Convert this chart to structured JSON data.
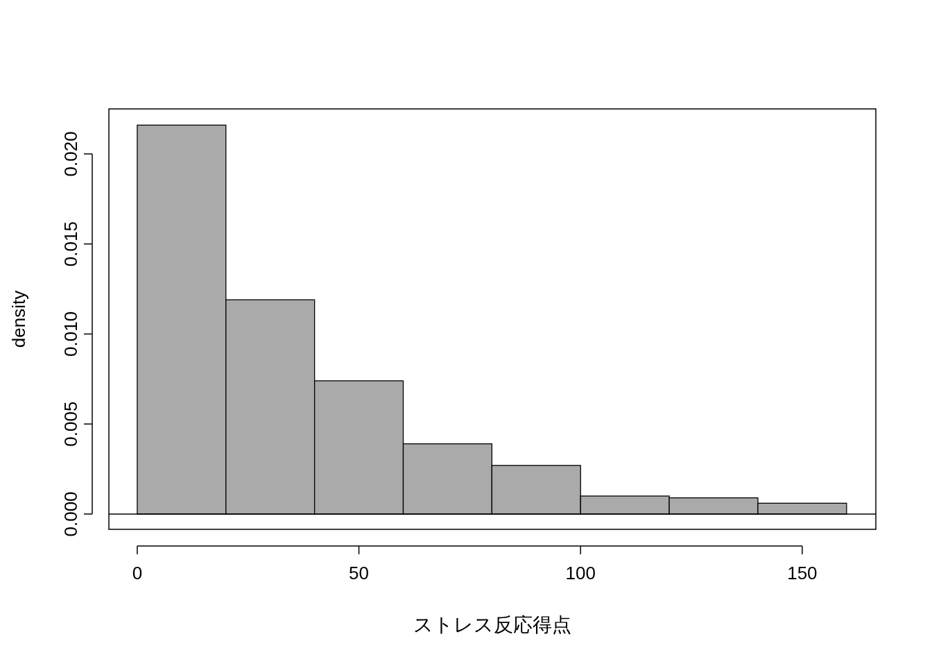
{
  "chart_data": {
    "type": "histogram",
    "xlabel": "ストレス反応得点",
    "ylabel": "density",
    "bins": [
      0,
      20,
      40,
      60,
      80,
      100,
      120,
      140,
      160
    ],
    "values": [
      0.0216,
      0.0119,
      0.0074,
      0.0039,
      0.0027,
      0.001,
      0.0009,
      0.0006
    ],
    "color": "#aaaaaa",
    "xlim": [
      -6.4,
      166.6
    ],
    "ylim": [
      -0.00085,
      0.0225
    ],
    "xticks": [
      0,
      50,
      100,
      150
    ],
    "yticks": [
      {
        "value": 0,
        "label": "0.000"
      },
      {
        "value": 0.005,
        "label": "0.005"
      },
      {
        "value": 0.01,
        "label": "0.010"
      },
      {
        "value": 0.015,
        "label": "0.015"
      },
      {
        "value": 0.02,
        "label": "0.020"
      }
    ],
    "ref_lines": [
      {
        "axis": "y",
        "value": 0,
        "color": "#000000"
      }
    ]
  }
}
